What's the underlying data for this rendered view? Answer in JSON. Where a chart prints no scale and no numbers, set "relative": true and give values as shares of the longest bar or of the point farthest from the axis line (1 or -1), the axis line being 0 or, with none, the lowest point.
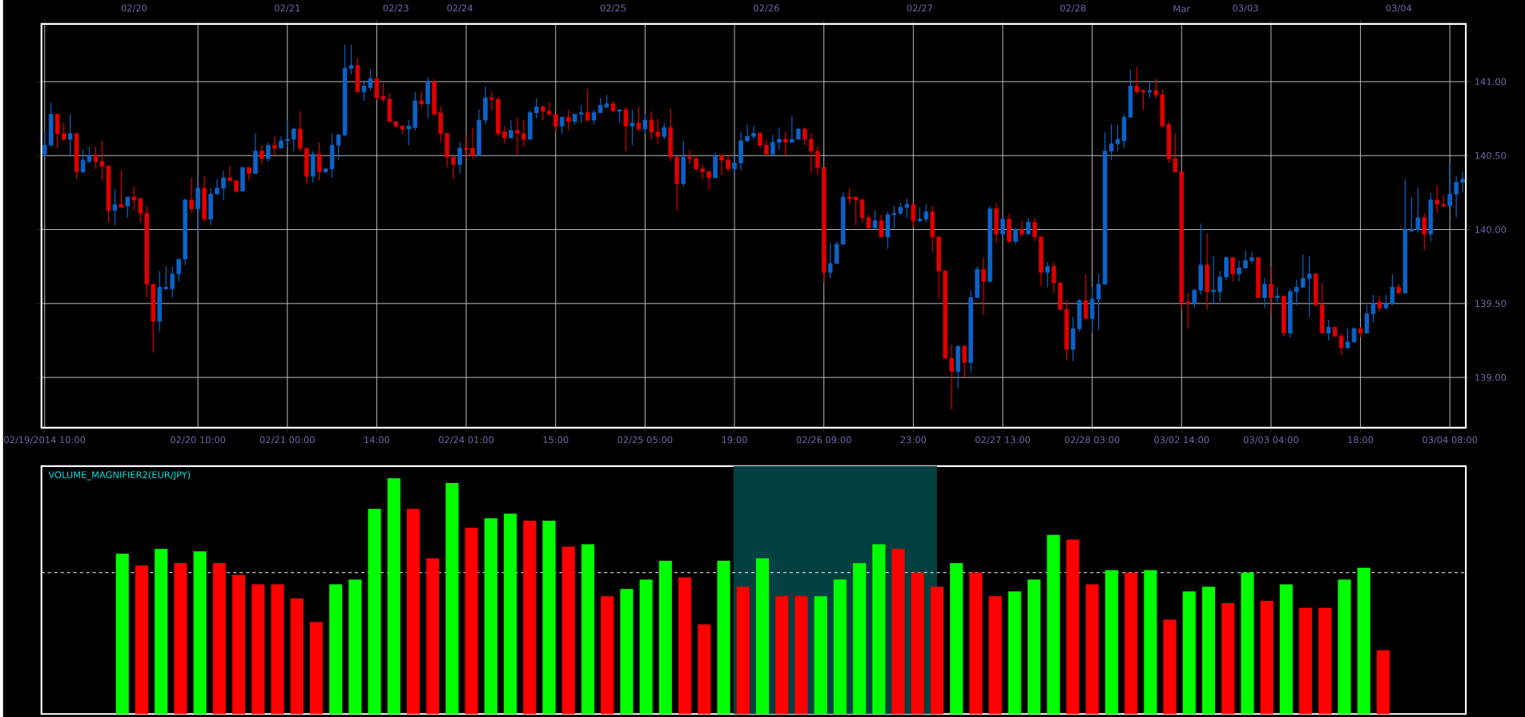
{
  "chart_data": [
    {
      "type": "candlestick",
      "categories": [
        "02/19/2014 10:00",
        null,
        null,
        null,
        null,
        null,
        null,
        null,
        null,
        null,
        null,
        null,
        null,
        null,
        null,
        null,
        null,
        null,
        null,
        null,
        null,
        null,
        null,
        null,
        "02/20 10:00",
        null,
        null,
        null,
        null,
        null,
        null,
        null,
        null,
        null,
        null,
        null,
        null,
        null,
        "02/21 00:00",
        null,
        null,
        null,
        null,
        null,
        null,
        null,
        null,
        null,
        null,
        null,
        null,
        null,
        "14:00",
        null,
        null,
        null,
        null,
        null,
        null,
        null,
        null,
        null,
        null,
        null,
        null,
        null,
        "02/24 01:00",
        null,
        null,
        null,
        null,
        null,
        null,
        null,
        null,
        null,
        null,
        null,
        null,
        null,
        "15:00",
        null,
        null,
        null,
        null,
        null,
        null,
        null,
        null,
        null,
        null,
        null,
        null,
        null,
        "02/25 05:00",
        null,
        null,
        null,
        null,
        null,
        null,
        null,
        null,
        null,
        null,
        null,
        null,
        null,
        "19:00",
        null,
        null,
        null,
        null,
        null,
        null,
        null,
        null,
        null,
        null,
        null,
        null,
        null,
        "02/26 09:00",
        null,
        null,
        null,
        null,
        null,
        null,
        null,
        null,
        null,
        null,
        null,
        null,
        null,
        "23:00",
        null,
        null,
        null,
        null,
        null,
        null,
        null,
        null,
        null,
        null,
        null,
        null,
        null,
        "02/27 13:00",
        null,
        null,
        null,
        null,
        null,
        null,
        null,
        null,
        null,
        null,
        null,
        null,
        null,
        "02/28 03:00",
        null,
        null,
        null,
        null,
        null,
        null,
        null,
        null,
        null,
        null,
        null,
        null,
        null,
        "03/02 14:00",
        null,
        null,
        null,
        null,
        null,
        null,
        null,
        null,
        null,
        null,
        null,
        null,
        null,
        "03/03 04:00",
        null,
        null,
        null,
        null,
        null,
        null,
        null,
        null,
        null,
        null,
        null,
        null,
        null,
        "18:00",
        null,
        null,
        null,
        null,
        null,
        null,
        null,
        null,
        null,
        null,
        null,
        null,
        null,
        "03/04 08:00",
        null,
        null
      ],
      "ohlc": [
        [
          140.51,
          140.67,
          140.49,
          140.57
        ],
        [
          140.57,
          140.86,
          140.57,
          140.78
        ],
        [
          140.78,
          140.78,
          140.55,
          140.65
        ],
        [
          140.65,
          140.72,
          140.6,
          140.61
        ],
        [
          140.61,
          140.78,
          140.49,
          140.65
        ],
        [
          140.65,
          140.65,
          140.34,
          140.39
        ],
        [
          140.39,
          140.54,
          140.38,
          140.47
        ],
        [
          140.46,
          140.56,
          140.45,
          140.5
        ],
        [
          140.5,
          140.56,
          140.41,
          140.46
        ],
        [
          140.46,
          140.6,
          140.33,
          140.43
        ],
        [
          140.43,
          140.43,
          140.05,
          140.13
        ],
        [
          140.13,
          140.27,
          140.03,
          140.17
        ],
        [
          140.17,
          140.4,
          140.15,
          140.15
        ],
        [
          140.16,
          140.22,
          140.08,
          140.22
        ],
        [
          140.22,
          140.29,
          140.13,
          140.2
        ],
        [
          140.21,
          140.21,
          140.05,
          140.11
        ],
        [
          140.11,
          140.16,
          139.54,
          139.63
        ],
        [
          139.63,
          139.63,
          139.17,
          139.38
        ],
        [
          139.38,
          139.72,
          139.31,
          139.61
        ],
        [
          139.6,
          139.75,
          139.59,
          139.61
        ],
        [
          139.6,
          139.75,
          139.54,
          139.7
        ],
        [
          139.7,
          139.8,
          139.65,
          139.8
        ],
        [
          139.8,
          140.21,
          139.76,
          140.2
        ],
        [
          140.2,
          140.35,
          140.11,
          140.14
        ],
        [
          140.14,
          140.35,
          139.99,
          140.28
        ],
        [
          140.28,
          140.36,
          140.05,
          140.07
        ],
        [
          140.07,
          140.28,
          140.03,
          140.24
        ],
        [
          140.24,
          140.34,
          140.24,
          140.28
        ],
        [
          140.28,
          140.4,
          140.2,
          140.35
        ],
        [
          140.35,
          140.43,
          140.33,
          140.33
        ],
        [
          140.33,
          140.33,
          140.25,
          140.26
        ],
        [
          140.26,
          140.42,
          140.26,
          140.42
        ],
        [
          140.42,
          140.42,
          140.33,
          140.38
        ],
        [
          140.38,
          140.65,
          140.38,
          140.53
        ],
        [
          140.53,
          140.57,
          140.44,
          140.48
        ],
        [
          140.48,
          140.59,
          140.46,
          140.57
        ],
        [
          140.57,
          140.63,
          140.5,
          140.55
        ],
        [
          140.55,
          140.63,
          140.55,
          140.6
        ],
        [
          140.6,
          140.74,
          140.56,
          140.61
        ],
        [
          140.61,
          140.69,
          140.53,
          140.68
        ],
        [
          140.68,
          140.8,
          140.53,
          140.55
        ],
        [
          140.55,
          140.55,
          140.31,
          140.36
        ],
        [
          140.36,
          140.53,
          140.32,
          140.51
        ],
        [
          140.51,
          140.59,
          140.33,
          140.39
        ],
        [
          140.39,
          140.41,
          140.38,
          140.41
        ],
        [
          140.41,
          140.65,
          140.35,
          140.57
        ],
        [
          140.57,
          140.65,
          140.47,
          140.64
        ],
        [
          140.64,
          141.25,
          140.63,
          141.09
        ],
        [
          141.09,
          141.25,
          141.05,
          141.11
        ],
        [
          141.11,
          141.16,
          140.93,
          140.93
        ],
        [
          140.93,
          141.01,
          140.87,
          140.97
        ],
        [
          140.96,
          141.08,
          140.94,
          141.02
        ],
        [
          141.02,
          141.03,
          140.88,
          140.89
        ],
        [
          140.9,
          140.99,
          140.86,
          140.88
        ],
        [
          140.88,
          140.92,
          140.73,
          140.73
        ],
        [
          140.73,
          140.73,
          140.69,
          140.7
        ],
        [
          140.7,
          140.7,
          140.65,
          140.68
        ],
        [
          140.68,
          140.74,
          140.57,
          140.7
        ],
        [
          140.69,
          140.93,
          140.67,
          140.87
        ],
        [
          140.87,
          140.93,
          140.82,
          140.85
        ],
        [
          140.85,
          141.03,
          140.75,
          141.0
        ],
        [
          141.0,
          141.02,
          140.77,
          140.78
        ],
        [
          140.79,
          140.83,
          140.59,
          140.65
        ],
        [
          140.65,
          140.65,
          140.42,
          140.49
        ],
        [
          140.49,
          140.49,
          140.34,
          140.44
        ],
        [
          140.44,
          140.59,
          140.38,
          140.55
        ],
        [
          140.55,
          140.64,
          140.48,
          140.54
        ],
        [
          140.55,
          140.69,
          140.48,
          140.5
        ],
        [
          140.5,
          140.81,
          140.5,
          140.74
        ],
        [
          140.74,
          140.97,
          140.71,
          140.89
        ],
        [
          140.89,
          140.93,
          140.81,
          140.88
        ],
        [
          140.88,
          140.9,
          140.63,
          140.65
        ],
        [
          140.66,
          140.7,
          140.58,
          140.62
        ],
        [
          140.62,
          140.74,
          140.62,
          140.67
        ],
        [
          140.67,
          140.76,
          140.51,
          140.65
        ],
        [
          140.65,
          140.74,
          140.56,
          140.61
        ],
        [
          140.61,
          140.81,
          140.61,
          140.79
        ],
        [
          140.79,
          140.89,
          140.75,
          140.83
        ],
        [
          140.83,
          140.84,
          140.74,
          140.8
        ],
        [
          140.8,
          140.86,
          140.77,
          140.78
        ],
        [
          140.78,
          140.78,
          140.66,
          140.7
        ],
        [
          140.7,
          140.76,
          140.65,
          140.76
        ],
        [
          140.76,
          140.81,
          140.67,
          140.73
        ],
        [
          140.73,
          140.78,
          140.71,
          140.78
        ],
        [
          140.78,
          140.84,
          140.72,
          140.79
        ],
        [
          140.79,
          140.95,
          140.73,
          140.74
        ],
        [
          140.74,
          140.81,
          140.71,
          140.79
        ],
        [
          140.79,
          140.89,
          140.79,
          140.84
        ],
        [
          140.83,
          140.91,
          140.82,
          140.85
        ],
        [
          140.85,
          140.87,
          140.8,
          140.8
        ],
        [
          140.8,
          140.81,
          140.72,
          140.81
        ],
        [
          140.81,
          140.83,
          140.53,
          140.7
        ],
        [
          140.7,
          140.81,
          140.57,
          140.72
        ],
        [
          140.72,
          140.83,
          140.66,
          140.68
        ],
        [
          140.68,
          140.78,
          140.65,
          140.74
        ],
        [
          140.74,
          140.8,
          140.61,
          140.66
        ],
        [
          140.66,
          140.75,
          140.58,
          140.63
        ],
        [
          140.63,
          140.72,
          140.61,
          140.69
        ],
        [
          140.69,
          140.82,
          140.46,
          140.49
        ],
        [
          140.49,
          140.49,
          140.13,
          140.31
        ],
        [
          140.31,
          140.6,
          140.29,
          140.49
        ],
        [
          140.49,
          140.54,
          140.44,
          140.48
        ],
        [
          140.48,
          140.5,
          140.4,
          140.41
        ],
        [
          140.41,
          140.44,
          140.34,
          140.39
        ],
        [
          140.39,
          140.4,
          140.27,
          140.35
        ],
        [
          140.35,
          140.52,
          140.35,
          140.5
        ],
        [
          140.5,
          140.51,
          140.37,
          140.47
        ],
        [
          140.47,
          140.5,
          140.39,
          140.41
        ],
        [
          140.41,
          140.5,
          140.38,
          140.45
        ],
        [
          140.45,
          140.66,
          140.4,
          140.6
        ],
        [
          140.6,
          140.71,
          140.59,
          140.63
        ],
        [
          140.63,
          140.7,
          140.61,
          140.65
        ],
        [
          140.65,
          140.66,
          140.55,
          140.57
        ],
        [
          140.57,
          140.61,
          140.51,
          140.51
        ],
        [
          140.51,
          140.64,
          140.5,
          140.59
        ],
        [
          140.59,
          140.69,
          140.54,
          140.61
        ],
        [
          140.61,
          140.66,
          140.5,
          140.59
        ],
        [
          140.59,
          140.77,
          140.59,
          140.61
        ],
        [
          140.61,
          140.69,
          140.61,
          140.68
        ],
        [
          140.68,
          140.69,
          140.57,
          140.61
        ],
        [
          140.61,
          140.65,
          140.38,
          140.53
        ],
        [
          140.53,
          140.56,
          140.37,
          140.42
        ],
        [
          140.42,
          140.42,
          139.64,
          139.71
        ],
        [
          139.71,
          139.91,
          139.67,
          139.77
        ],
        [
          139.77,
          139.92,
          139.77,
          139.9
        ],
        [
          139.9,
          140.25,
          139.9,
          140.22
        ],
        [
          140.22,
          140.28,
          140.17,
          140.21
        ],
        [
          140.22,
          140.22,
          140.03,
          140.2
        ],
        [
          140.2,
          140.21,
          140.05,
          140.08
        ],
        [
          140.08,
          140.1,
          140.01,
          140.01
        ],
        [
          140.01,
          140.13,
          140.01,
          140.06
        ],
        [
          140.06,
          140.1,
          139.95,
          139.95
        ],
        [
          139.95,
          140.12,
          139.87,
          140.1
        ],
        [
          140.1,
          140.16,
          140.01,
          140.11
        ],
        [
          140.11,
          140.18,
          140.1,
          140.15
        ],
        [
          140.15,
          140.21,
          140.08,
          140.17
        ],
        [
          140.17,
          140.17,
          140.02,
          140.06
        ],
        [
          140.06,
          140.15,
          140.05,
          140.07
        ],
        [
          140.07,
          140.17,
          140.05,
          140.12
        ],
        [
          140.12,
          140.16,
          139.85,
          139.95
        ],
        [
          139.95,
          139.95,
          139.53,
          139.72
        ],
        [
          139.72,
          139.72,
          139.13,
          139.13
        ],
        [
          139.13,
          139.22,
          138.78,
          139.04
        ],
        [
          139.04,
          139.22,
          138.93,
          139.21
        ],
        [
          139.21,
          139.22,
          139.0,
          139.1
        ],
        [
          139.1,
          139.59,
          139.03,
          139.54
        ],
        [
          139.54,
          139.75,
          139.54,
          139.73
        ],
        [
          139.73,
          139.81,
          139.42,
          139.65
        ],
        [
          139.65,
          140.16,
          139.64,
          140.14
        ],
        [
          140.14,
          140.18,
          139.91,
          139.97
        ],
        [
          139.97,
          140.08,
          139.94,
          140.07
        ],
        [
          140.07,
          140.11,
          139.91,
          139.92
        ],
        [
          139.92,
          140.01,
          139.9,
          140.0
        ],
        [
          140.0,
          140.06,
          139.95,
          139.97
        ],
        [
          139.97,
          140.08,
          139.97,
          140.05
        ],
        [
          140.05,
          140.08,
          139.92,
          139.95
        ],
        [
          139.95,
          139.95,
          139.62,
          139.71
        ],
        [
          139.71,
          139.78,
          139.61,
          139.75
        ],
        [
          139.75,
          139.78,
          139.57,
          139.64
        ],
        [
          139.64,
          139.64,
          139.46,
          139.46
        ],
        [
          139.46,
          139.52,
          139.12,
          139.19
        ],
        [
          139.19,
          139.41,
          139.11,
          139.33
        ],
        [
          139.33,
          139.53,
          139.31,
          139.52
        ],
        [
          139.52,
          139.7,
          139.4,
          139.4
        ],
        [
          139.4,
          139.61,
          139.3,
          139.53
        ],
        [
          139.53,
          139.7,
          139.32,
          139.63
        ],
        [
          139.63,
          140.66,
          139.63,
          140.53
        ],
        [
          140.53,
          140.71,
          140.47,
          140.58
        ],
        [
          140.58,
          140.71,
          140.53,
          140.61
        ],
        [
          140.6,
          140.78,
          140.55,
          140.76
        ],
        [
          140.76,
          141.08,
          140.76,
          140.97
        ],
        [
          140.97,
          141.1,
          140.92,
          140.93
        ],
        [
          140.94,
          140.95,
          140.81,
          140.93
        ],
        [
          140.93,
          141.0,
          140.89,
          140.94
        ],
        [
          140.94,
          141.02,
          140.89,
          140.91
        ],
        [
          140.91,
          140.95,
          140.69,
          140.7
        ],
        [
          140.71,
          140.73,
          140.45,
          140.48
        ],
        [
          140.48,
          140.65,
          140.39,
          140.39
        ],
        [
          140.39,
          140.39,
          139.46,
          139.51
        ],
        [
          139.51,
          139.57,
          139.33,
          139.5
        ],
        [
          139.5,
          139.6,
          139.47,
          139.59
        ],
        [
          139.59,
          140.04,
          139.56,
          139.76
        ],
        [
          139.76,
          139.97,
          139.46,
          139.58
        ],
        [
          139.58,
          139.82,
          139.5,
          139.59
        ],
        [
          139.58,
          139.72,
          139.51,
          139.68
        ],
        [
          139.68,
          139.82,
          139.66,
          139.81
        ],
        [
          139.81,
          139.81,
          139.65,
          139.7
        ],
        [
          139.7,
          139.79,
          139.65,
          139.74
        ],
        [
          139.74,
          139.86,
          139.74,
          139.79
        ],
        [
          139.79,
          139.85,
          139.77,
          139.81
        ],
        [
          139.81,
          139.81,
          139.54,
          139.54
        ],
        [
          139.54,
          139.67,
          139.47,
          139.63
        ],
        [
          139.63,
          139.75,
          139.43,
          139.54
        ],
        [
          139.54,
          139.61,
          139.51,
          139.55
        ],
        [
          139.55,
          139.55,
          139.28,
          139.3
        ],
        [
          139.3,
          139.6,
          139.27,
          139.58
        ],
        [
          139.58,
          139.66,
          139.49,
          139.61
        ],
        [
          139.61,
          139.83,
          139.61,
          139.67
        ],
        [
          139.67,
          139.82,
          139.41,
          139.7
        ],
        [
          139.7,
          139.7,
          139.49,
          139.49
        ],
        [
          139.49,
          139.64,
          139.3,
          139.3
        ],
        [
          139.3,
          139.39,
          139.25,
          139.34
        ],
        [
          139.34,
          139.34,
          139.27,
          139.28
        ],
        [
          139.28,
          139.3,
          139.15,
          139.2
        ],
        [
          139.2,
          139.33,
          139.2,
          139.24
        ],
        [
          139.24,
          139.34,
          139.24,
          139.33
        ],
        [
          139.33,
          139.34,
          139.27,
          139.3
        ],
        [
          139.3,
          139.49,
          139.3,
          139.43
        ],
        [
          139.43,
          139.56,
          139.37,
          139.5
        ],
        [
          139.51,
          139.55,
          139.45,
          139.47
        ],
        [
          139.47,
          139.56,
          139.46,
          139.5
        ],
        [
          139.5,
          139.7,
          139.49,
          139.61
        ],
        [
          139.61,
          139.63,
          139.57,
          139.57
        ],
        [
          139.57,
          140.34,
          139.57,
          140.0
        ],
        [
          139.99,
          140.22,
          139.99,
          140.0
        ],
        [
          140.0,
          140.28,
          139.98,
          140.08
        ],
        [
          140.08,
          140.11,
          139.86,
          139.97
        ],
        [
          139.97,
          140.25,
          139.92,
          140.2
        ],
        [
          140.2,
          140.3,
          140.11,
          140.17
        ],
        [
          140.17,
          140.23,
          140.15,
          140.16
        ],
        [
          140.16,
          140.44,
          140.16,
          140.24
        ],
        [
          140.24,
          140.36,
          140.08,
          140.32
        ],
        [
          140.32,
          140.39,
          140.25,
          140.34
        ]
      ],
      "colors": [
        "#0d63c8",
        "#0d63c8",
        "#e00000",
        "#e00000",
        "#0d63c8",
        "#e00000",
        "#0d63c8",
        "#0d63c8",
        "#e00000",
        "#e00000",
        "#e00000",
        "#0d63c8",
        "#e00000",
        "#0d63c8",
        "#e00000",
        "#e00000",
        "#e00000",
        "#e00000",
        "#0d63c8",
        "#0d63c8",
        "#0d63c8",
        "#0d63c8",
        "#0d63c8",
        "#e00000",
        "#0d63c8",
        "#e00000",
        "#0d63c8",
        "#0d63c8",
        "#0d63c8",
        "#e00000",
        "#e00000",
        "#0d63c8",
        "#e00000",
        "#0d63c8",
        "#e00000",
        "#0d63c8",
        "#e00000",
        "#0d63c8",
        "#0d63c8",
        "#0d63c8",
        "#e00000",
        "#e00000",
        "#0d63c8",
        "#e00000",
        "#0d63c8",
        "#0d63c8",
        "#0d63c8",
        "#0d63c8",
        "#0d63c8",
        "#e00000",
        "#0d63c8",
        "#0d63c8",
        "#e00000",
        "#e00000",
        "#e00000",
        "#e00000",
        "#e00000",
        "#0d63c8",
        "#0d63c8",
        "#e00000",
        "#0d63c8",
        "#e00000",
        "#e00000",
        "#e00000",
        "#e00000",
        "#0d63c8",
        "#e00000",
        "#e00000",
        "#0d63c8",
        "#0d63c8",
        "#e00000",
        "#e00000",
        "#e00000",
        "#0d63c8",
        "#e00000",
        "#e00000",
        "#0d63c8",
        "#0d63c8",
        "#e00000",
        "#e00000",
        "#e00000",
        "#0d63c8",
        "#e00000",
        "#0d63c8",
        "#0d63c8",
        "#e00000",
        "#0d63c8",
        "#0d63c8",
        "#0d63c8",
        "#e00000",
        "#0d63c8",
        "#e00000",
        "#0d63c8",
        "#e00000",
        "#0d63c8",
        "#e00000",
        "#e00000",
        "#0d63c8",
        "#e00000",
        "#e00000",
        "#0d63c8",
        "#e00000",
        "#e00000",
        "#e00000",
        "#e00000",
        "#0d63c8",
        "#e00000",
        "#e00000",
        "#0d63c8",
        "#0d63c8",
        "#0d63c8",
        "#0d63c8",
        "#e00000",
        "#e00000",
        "#0d63c8",
        "#0d63c8",
        "#e00000",
        "#0d63c8",
        "#0d63c8",
        "#e00000",
        "#e00000",
        "#e00000",
        "#e00000",
        "#0d63c8",
        "#0d63c8",
        "#0d63c8",
        "#e00000",
        "#e00000",
        "#e00000",
        "#e00000",
        "#0d63c8",
        "#e00000",
        "#0d63c8",
        "#0d63c8",
        "#0d63c8",
        "#0d63c8",
        "#e00000",
        "#0d63c8",
        "#0d63c8",
        "#e00000",
        "#e00000",
        "#e00000",
        "#e00000",
        "#0d63c8",
        "#e00000",
        "#0d63c8",
        "#0d63c8",
        "#e00000",
        "#0d63c8",
        "#e00000",
        "#0d63c8",
        "#e00000",
        "#0d63c8",
        "#e00000",
        "#0d63c8",
        "#e00000",
        "#e00000",
        "#0d63c8",
        "#e00000",
        "#e00000",
        "#e00000",
        "#0d63c8",
        "#0d63c8",
        "#e00000",
        "#0d63c8",
        "#0d63c8",
        "#0d63c8",
        "#0d63c8",
        "#0d63c8",
        "#0d63c8",
        "#0d63c8",
        "#e00000",
        "#e00000",
        "#0d63c8",
        "#e00000",
        "#e00000",
        "#e00000",
        "#e00000",
        "#e00000",
        "#e00000",
        "#0d63c8",
        "#0d63c8",
        "#e00000",
        "#0d63c8",
        "#0d63c8",
        "#0d63c8",
        "#e00000",
        "#0d63c8",
        "#0d63c8",
        "#0d63c8",
        "#e00000",
        "#0d63c8",
        "#e00000",
        "#0d63c8",
        "#e00000",
        "#0d63c8",
        "#0d63c8",
        "#0d63c8",
        "#0d63c8",
        "#e00000",
        "#e00000",
        "#0d63c8",
        "#e00000",
        "#e00000",
        "#0d63c8",
        "#0d63c8",
        "#e00000",
        "#0d63c8",
        "#0d63c8",
        "#e00000",
        "#0d63c8",
        "#0d63c8",
        "#e00000",
        "#0d63c8",
        "#0d63c8",
        "#0d63c8",
        "#e00000",
        "#0d63c8",
        "#e00000",
        "#e00000",
        "#0d63c8",
        "#0d63c8",
        "#0d63c8"
      ],
      "ylim": [
        138.66,
        141.39
      ],
      "yticks": [
        {
          "value": 139,
          "label": "139.00"
        },
        {
          "value": 139.5,
          "label": "139.50"
        },
        {
          "value": 140,
          "label": "140.00"
        },
        {
          "value": 140.5,
          "label": "140.50"
        },
        {
          "value": 141,
          "label": "141.00"
        }
      ],
      "annotations": [
        "02/20",
        "02/21",
        "02/23",
        "02/24",
        "02/25",
        "02/26",
        "02/27",
        "02/28",
        "Mar",
        "03/03",
        "03/04"
      ],
      "grid": true
    },
    {
      "type": "bar",
      "title": "VOLUME_MAGNIFIER2(EUR/JPY)",
      "relative": true,
      "categories": [
        null,
        null,
        null,
        null,
        null,
        null,
        null,
        null,
        null,
        null,
        null,
        null,
        null,
        null,
        null,
        null,
        null,
        null,
        null,
        null,
        null,
        null,
        null,
        null,
        null,
        null,
        null,
        null,
        null,
        null,
        null,
        null,
        null,
        null,
        null,
        null,
        null,
        null,
        null,
        null,
        null,
        null,
        null,
        null,
        null,
        null,
        null,
        null,
        null,
        null,
        null,
        null,
        null,
        null,
        null,
        null,
        null,
        null,
        null,
        null,
        null,
        null,
        null,
        null,
        null,
        null
      ],
      "values": [
        0.68,
        0.63,
        0.7,
        0.64,
        0.69,
        0.64,
        0.59,
        0.55,
        0.55,
        0.49,
        0.39,
        0.55,
        0.57,
        0.87,
        1.0,
        0.87,
        0.66,
        0.98,
        0.79,
        0.83,
        0.85,
        0.82,
        0.82,
        0.71,
        0.72,
        0.5,
        0.53,
        0.57,
        0.65,
        0.58,
        0.38,
        0.65,
        0.54,
        0.66,
        0.5,
        0.5,
        0.5,
        0.57,
        0.64,
        0.72,
        0.7,
        0.6,
        0.54,
        0.64,
        0.6,
        0.5,
        0.52,
        0.57,
        0.76,
        0.74,
        0.55,
        0.61,
        0.6,
        0.61,
        0.4,
        0.52,
        0.54,
        0.47,
        0.6,
        0.48,
        0.55,
        0.45,
        0.45,
        0.57,
        0.62,
        0.27
      ],
      "colors": [
        "#00ff00",
        "#ff0000",
        "#00ff00",
        "#ff0000",
        "#00ff00",
        "#ff0000",
        "#ff0000",
        "#ff0000",
        "#ff0000",
        "#ff0000",
        "#ff0000",
        "#00ff00",
        "#00ff00",
        "#00ff00",
        "#00ff00",
        "#ff0000",
        "#ff0000",
        "#00ff00",
        "#ff0000",
        "#00ff00",
        "#00ff00",
        "#ff0000",
        "#00ff00",
        "#ff0000",
        "#00ff00",
        "#ff0000",
        "#00ff00",
        "#00ff00",
        "#00ff00",
        "#ff0000",
        "#ff0000",
        "#00ff00",
        "#ff0000",
        "#00ff00",
        "#ff0000",
        "#ff0000",
        "#00ff00",
        "#00ff00",
        "#00ff00",
        "#00ff00",
        "#ff0000",
        "#ff0000",
        "#ff0000",
        "#00ff00",
        "#ff0000",
        "#ff0000",
        "#00ff00",
        "#00ff00",
        "#00ff00",
        "#ff0000",
        "#ff0000",
        "#00ff00",
        "#ff0000",
        "#00ff00",
        "#ff0000",
        "#00ff00",
        "#00ff00",
        "#ff0000",
        "#00ff00",
        "#ff0000",
        "#00ff00",
        "#ff0000",
        "#ff0000",
        "#00ff00",
        "#00ff00",
        "#ff0000"
      ],
      "ref_lines": [
        {
          "axis": "y",
          "value": 0.6,
          "color": "#ffffff",
          "line_style": "dashed"
        }
      ]
    }
  ]
}
